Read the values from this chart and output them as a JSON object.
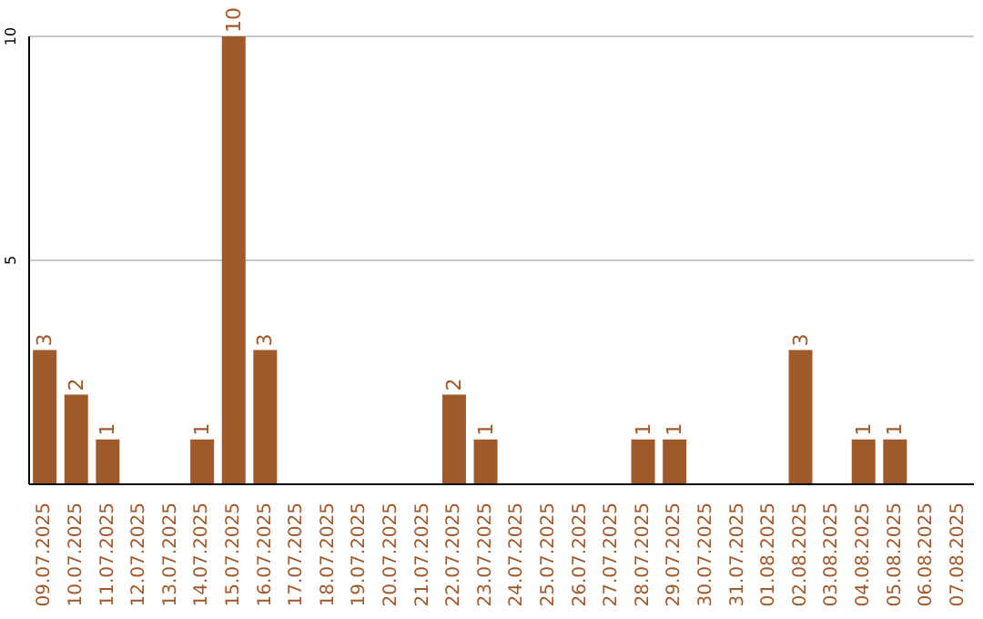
{
  "chart_data": {
    "type": "bar",
    "categories": [
      "09.07.2025",
      "10.07.2025",
      "11.07.2025",
      "12.07.2025",
      "13.07.2025",
      "14.07.2025",
      "15.07.2025",
      "16.07.2025",
      "17.07.2025",
      "18.07.2025",
      "19.07.2025",
      "20.07.2025",
      "21.07.2025",
      "22.07.2025",
      "23.07.2025",
      "24.07.2025",
      "25.07.2025",
      "26.07.2025",
      "27.07.2025",
      "28.07.2025",
      "29.07.2025",
      "30.07.2025",
      "31.07.2025",
      "01.08.2025",
      "02.08.2025",
      "03.08.2025",
      "04.08.2025",
      "05.08.2025",
      "06.08.2025",
      "07.08.2025"
    ],
    "values": [
      3,
      2,
      1,
      0,
      0,
      1,
      10,
      3,
      0,
      0,
      0,
      0,
      0,
      2,
      1,
      0,
      0,
      0,
      0,
      1,
      1,
      0,
      0,
      0,
      3,
      0,
      1,
      1,
      0,
      0
    ],
    "value_labels": [
      "3",
      "2",
      "1",
      null,
      null,
      "1",
      "10",
      "3",
      null,
      null,
      null,
      null,
      null,
      "2",
      "1",
      null,
      null,
      null,
      null,
      "1",
      "1",
      null,
      null,
      null,
      "3",
      null,
      "1",
      "1",
      null,
      null
    ],
    "color": "#a0592b",
    "ylim": [
      0,
      10
    ],
    "yticks": [
      5,
      10
    ],
    "grid": "y"
  }
}
